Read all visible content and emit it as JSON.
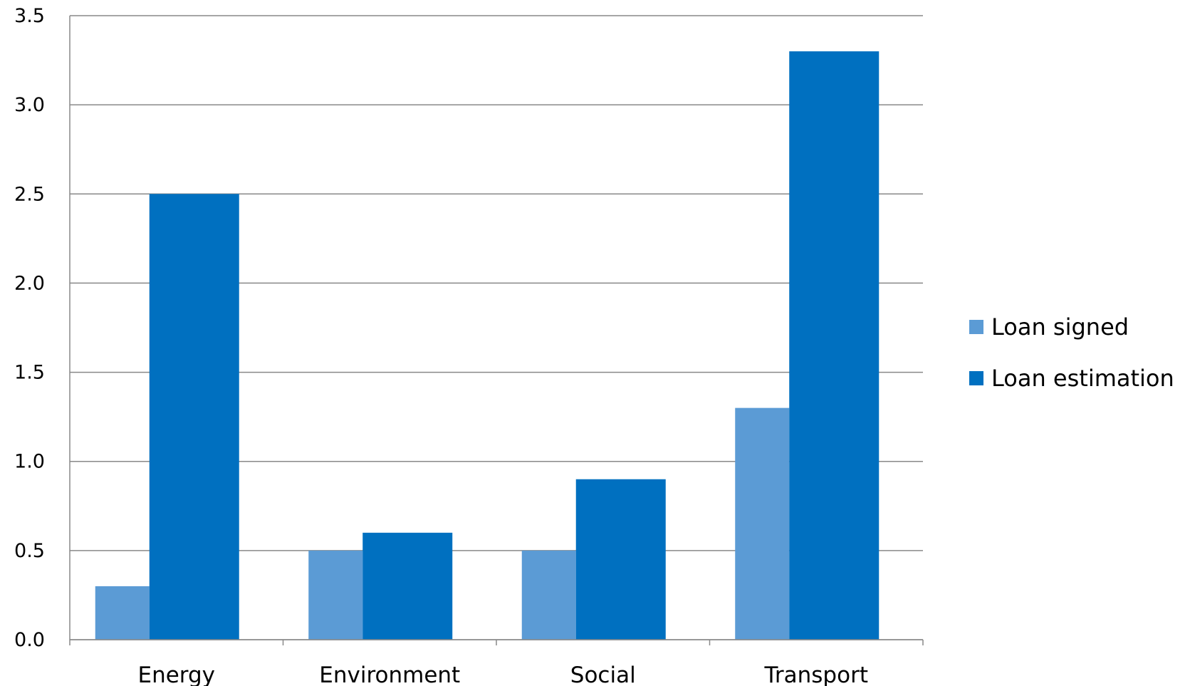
{
  "chart_data": {
    "type": "bar",
    "title": "",
    "xlabel": "",
    "ylabel": "",
    "categories": [
      "Energy",
      "Environment",
      "Social",
      "Transport"
    ],
    "series": [
      {
        "name": "Loan signed",
        "values": [
          0.3,
          0.5,
          0.5,
          1.3
        ],
        "color": "#5b9bd5"
      },
      {
        "name": "Loan estimation",
        "values": [
          2.5,
          0.6,
          0.9,
          3.3
        ],
        "color": "#0070c0"
      }
    ],
    "ylim": [
      0,
      3.5
    ],
    "yticks": [
      "0.0",
      "0.5",
      "1.0",
      "1.5",
      "2.0",
      "2.5",
      "3.0",
      "3.5"
    ],
    "grid": true,
    "legend_position": "right",
    "gridline_color": "#898989"
  }
}
